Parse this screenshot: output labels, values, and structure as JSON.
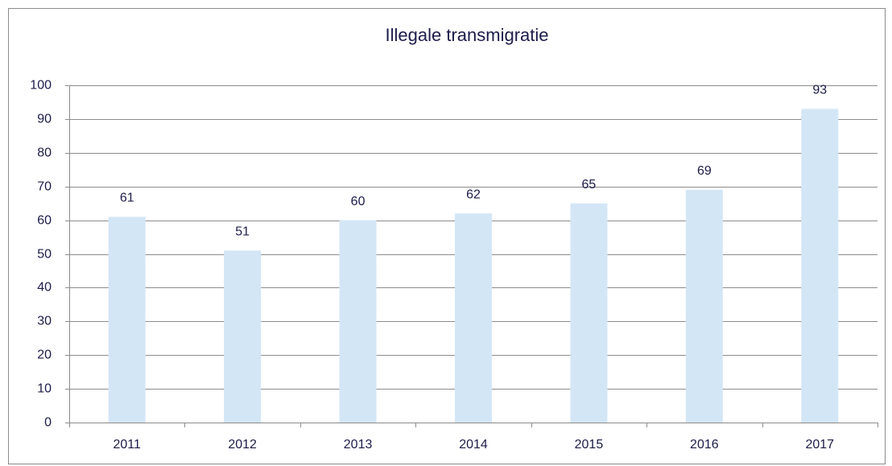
{
  "chart_data": {
    "type": "bar",
    "title": "Illegale transmigratie",
    "categories": [
      "2011",
      "2012",
      "2013",
      "2014",
      "2015",
      "2016",
      "2017"
    ],
    "values": [
      61,
      51,
      60,
      62,
      65,
      69,
      93
    ],
    "color": "#d3e6f6",
    "ylim": [
      0,
      100
    ],
    "yticks": [
      0,
      10,
      20,
      30,
      40,
      50,
      60,
      70,
      80,
      90,
      100
    ],
    "grid": true
  }
}
